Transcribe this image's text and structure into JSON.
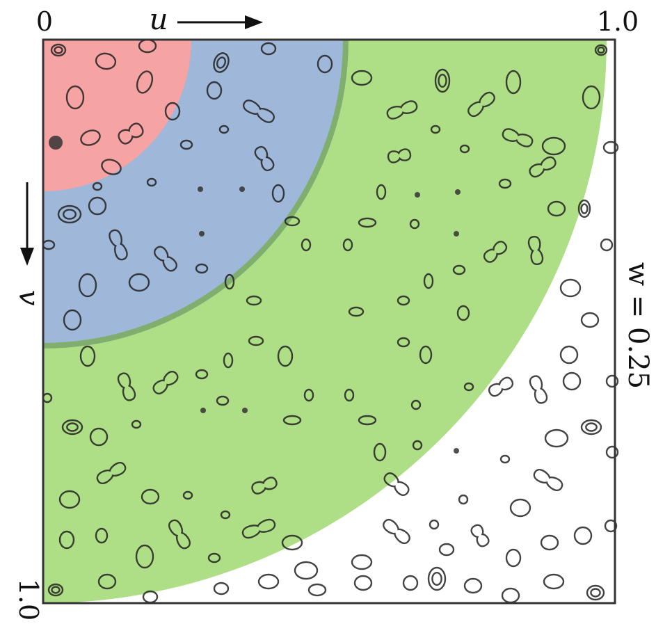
{
  "labels": {
    "u_origin": "0",
    "u_end": "1.0",
    "u_axis": "u",
    "v_axis": "v",
    "v_end": "1.0",
    "w_value": "w = 0.25"
  },
  "regions": [
    {
      "name": "inner-region",
      "color": "#f6a3a3"
    },
    {
      "name": "middle-region",
      "color": "#9fb7d8"
    },
    {
      "name": "outer-region",
      "color": "#aede86"
    }
  ],
  "colors": {
    "frame": "#333333",
    "contour": "#222222",
    "arrow": "#111111",
    "middle_ring_edge": "#7fae6e"
  },
  "icons": {
    "u_arrow": "right-arrow-icon",
    "v_arrow": "down-arrow-icon"
  }
}
